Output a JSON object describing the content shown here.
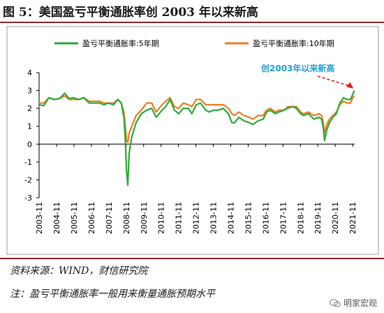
{
  "title": "图 5：美国盈亏平衡通胀率创 2003 年以来新高",
  "source_note": "资料来源：WIND，财信研究院",
  "footnote": "注：盈亏平衡通胀率一般用来衡量通胀预期水平",
  "watermark": "明家宏观",
  "colors": {
    "five_year": "#2eaa3b",
    "ten_year": "#ee7d22",
    "annotation": "#1fa0d8",
    "arrow": "#e02020",
    "rule": "#8c2a2a"
  },
  "chart_data": {
    "type": "line",
    "title": "",
    "xlabel": "",
    "ylabel": "",
    "ylim": [
      -3,
      4
    ],
    "yticks": [
      -3,
      -2,
      -1,
      0,
      1,
      2,
      3,
      4
    ],
    "xlim": [
      2003.83,
      2021.95
    ],
    "xticks": [
      "2003-11",
      "2004-11",
      "2005-11",
      "2006-11",
      "2007-11",
      "2008-11",
      "2009-11",
      "2010-11",
      "2011-11",
      "2012-11",
      "2013-11",
      "2014-11",
      "2015-11",
      "2016-11",
      "2017-11",
      "2018-11",
      "2019-11",
      "2020-11",
      "2021-11"
    ],
    "legend_position": "top",
    "grid": false,
    "series": [
      {
        "name": "盈亏平衡通胀率:5年期",
        "color": "#2eaa3b",
        "points": [
          [
            2003.83,
            2.2
          ],
          [
            2004.1,
            2.15
          ],
          [
            2004.4,
            2.6
          ],
          [
            2004.7,
            2.5
          ],
          [
            2005.0,
            2.55
          ],
          [
            2005.3,
            2.85
          ],
          [
            2005.55,
            2.55
          ],
          [
            2005.8,
            2.6
          ],
          [
            2006.1,
            2.5
          ],
          [
            2006.4,
            2.6
          ],
          [
            2006.7,
            2.3
          ],
          [
            2007.0,
            2.3
          ],
          [
            2007.3,
            2.3
          ],
          [
            2007.55,
            2.2
          ],
          [
            2007.8,
            2.3
          ],
          [
            2008.1,
            2.2
          ],
          [
            2008.35,
            2.5
          ],
          [
            2008.55,
            2.3
          ],
          [
            2008.7,
            1.5
          ],
          [
            2008.78,
            0.2
          ],
          [
            2008.85,
            -1.5
          ],
          [
            2008.92,
            -2.3
          ],
          [
            2009.0,
            -0.5
          ],
          [
            2009.15,
            0.4
          ],
          [
            2009.4,
            1.2
          ],
          [
            2009.7,
            1.7
          ],
          [
            2010.0,
            1.9
          ],
          [
            2010.3,
            2.0
          ],
          [
            2010.55,
            1.5
          ],
          [
            2010.8,
            1.8
          ],
          [
            2011.1,
            2.1
          ],
          [
            2011.35,
            2.5
          ],
          [
            2011.6,
            1.9
          ],
          [
            2011.85,
            1.7
          ],
          [
            2012.1,
            2.0
          ],
          [
            2012.4,
            2.0
          ],
          [
            2012.6,
            1.7
          ],
          [
            2012.85,
            2.2
          ],
          [
            2013.1,
            2.3
          ],
          [
            2013.4,
            1.9
          ],
          [
            2013.6,
            1.8
          ],
          [
            2013.85,
            1.9
          ],
          [
            2014.1,
            1.9
          ],
          [
            2014.4,
            2.0
          ],
          [
            2014.7,
            1.7
          ],
          [
            2014.9,
            1.2
          ],
          [
            2015.05,
            1.2
          ],
          [
            2015.3,
            1.5
          ],
          [
            2015.6,
            1.3
          ],
          [
            2015.9,
            1.2
          ],
          [
            2016.1,
            1.1
          ],
          [
            2016.4,
            1.3
          ],
          [
            2016.7,
            1.4
          ],
          [
            2016.9,
            1.8
          ],
          [
            2017.1,
            1.9
          ],
          [
            2017.4,
            1.7
          ],
          [
            2017.6,
            1.8
          ],
          [
            2017.9,
            1.9
          ],
          [
            2018.1,
            2.0
          ],
          [
            2018.4,
            2.1
          ],
          [
            2018.6,
            2.0
          ],
          [
            2018.85,
            1.7
          ],
          [
            2019.0,
            1.6
          ],
          [
            2019.3,
            1.7
          ],
          [
            2019.6,
            1.4
          ],
          [
            2019.9,
            1.5
          ],
          [
            2020.05,
            1.4
          ],
          [
            2020.15,
            0.9
          ],
          [
            2020.22,
            0.2
          ],
          [
            2020.35,
            0.8
          ],
          [
            2020.5,
            1.2
          ],
          [
            2020.7,
            1.5
          ],
          [
            2020.9,
            1.7
          ],
          [
            2021.1,
            2.3
          ],
          [
            2021.3,
            2.6
          ],
          [
            2021.5,
            2.5
          ],
          [
            2021.7,
            2.5
          ],
          [
            2021.85,
            2.8
          ],
          [
            2021.92,
            3.0
          ]
        ]
      },
      {
        "name": "盈亏平衡通胀率:10年期",
        "color": "#ee7d22",
        "points": [
          [
            2003.83,
            2.3
          ],
          [
            2004.1,
            2.3
          ],
          [
            2004.4,
            2.6
          ],
          [
            2004.7,
            2.5
          ],
          [
            2005.0,
            2.55
          ],
          [
            2005.3,
            2.7
          ],
          [
            2005.55,
            2.5
          ],
          [
            2005.8,
            2.5
          ],
          [
            2006.1,
            2.5
          ],
          [
            2006.4,
            2.6
          ],
          [
            2006.7,
            2.4
          ],
          [
            2007.0,
            2.4
          ],
          [
            2007.3,
            2.4
          ],
          [
            2007.55,
            2.3
          ],
          [
            2007.8,
            2.3
          ],
          [
            2008.1,
            2.3
          ],
          [
            2008.35,
            2.5
          ],
          [
            2008.55,
            2.3
          ],
          [
            2008.7,
            1.8
          ],
          [
            2008.78,
            1.0
          ],
          [
            2008.85,
            0.2
          ],
          [
            2008.92,
            0.1
          ],
          [
            2009.0,
            0.6
          ],
          [
            2009.15,
            1.0
          ],
          [
            2009.4,
            1.6
          ],
          [
            2009.7,
            1.9
          ],
          [
            2010.0,
            2.3
          ],
          [
            2010.3,
            2.3
          ],
          [
            2010.55,
            1.8
          ],
          [
            2010.8,
            2.1
          ],
          [
            2011.1,
            2.4
          ],
          [
            2011.35,
            2.6
          ],
          [
            2011.6,
            2.1
          ],
          [
            2011.85,
            2.0
          ],
          [
            2012.1,
            2.3
          ],
          [
            2012.4,
            2.2
          ],
          [
            2012.6,
            2.1
          ],
          [
            2012.85,
            2.5
          ],
          [
            2013.1,
            2.5
          ],
          [
            2013.4,
            2.2
          ],
          [
            2013.6,
            2.2
          ],
          [
            2013.85,
            2.2
          ],
          [
            2014.1,
            2.2
          ],
          [
            2014.4,
            2.2
          ],
          [
            2014.7,
            2.0
          ],
          [
            2014.9,
            1.7
          ],
          [
            2015.05,
            1.6
          ],
          [
            2015.3,
            1.8
          ],
          [
            2015.6,
            1.6
          ],
          [
            2015.9,
            1.5
          ],
          [
            2016.1,
            1.4
          ],
          [
            2016.4,
            1.6
          ],
          [
            2016.7,
            1.6
          ],
          [
            2016.9,
            1.9
          ],
          [
            2017.1,
            2.0
          ],
          [
            2017.4,
            1.8
          ],
          [
            2017.6,
            1.9
          ],
          [
            2017.9,
            1.9
          ],
          [
            2018.1,
            2.1
          ],
          [
            2018.4,
            2.1
          ],
          [
            2018.6,
            2.1
          ],
          [
            2018.85,
            1.8
          ],
          [
            2019.0,
            1.7
          ],
          [
            2019.3,
            1.8
          ],
          [
            2019.6,
            1.6
          ],
          [
            2019.9,
            1.7
          ],
          [
            2020.05,
            1.6
          ],
          [
            2020.15,
            1.2
          ],
          [
            2020.22,
            0.6
          ],
          [
            2020.35,
            1.1
          ],
          [
            2020.5,
            1.4
          ],
          [
            2020.7,
            1.6
          ],
          [
            2020.9,
            1.8
          ],
          [
            2021.1,
            2.2
          ],
          [
            2021.3,
            2.4
          ],
          [
            2021.5,
            2.3
          ],
          [
            2021.7,
            2.3
          ],
          [
            2021.85,
            2.6
          ],
          [
            2021.92,
            2.7
          ]
        ]
      }
    ],
    "annotation": {
      "text": "创2003年以来新高"
    }
  }
}
